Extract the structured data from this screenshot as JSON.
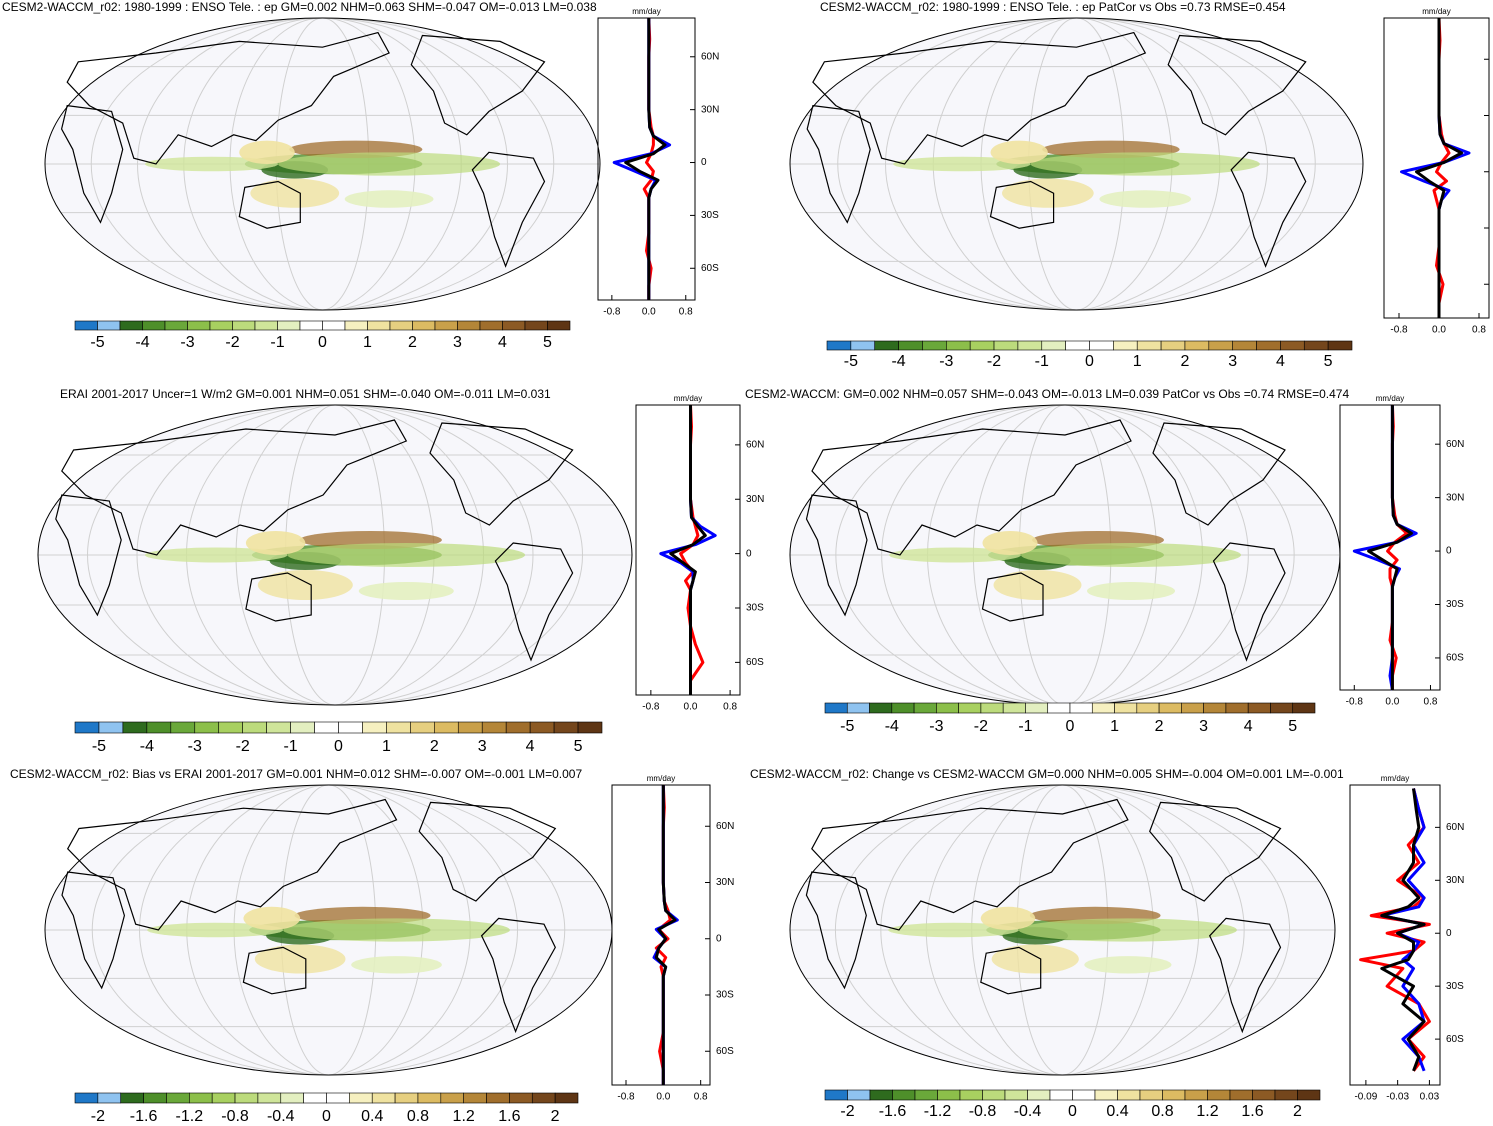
{
  "chart_data": [
    {
      "type": "line",
      "title": "CESM2-WACCM_r02: 1980-1999 : ENSO Tele. : ep GM=0.002 NHM=0.063 SHM=-0.047 OM=-0.013 LM=0.038",
      "x_label": "mm/day",
      "xlim": [
        -1.1,
        1.0
      ],
      "xticks": [
        -0.8,
        {
          "value": 0,
          "label": "0.0"
        },
        0.8
      ],
      "ylim": [
        -78,
        82
      ],
      "yticks": [
        {
          "value": 60,
          "label": "60N"
        },
        {
          "value": 30,
          "label": "30N"
        },
        0,
        {
          "value": -30,
          "label": "30S"
        },
        {
          "value": -60,
          "label": "60S"
        }
      ],
      "ytick_labels": true,
      "lat": [
        82,
        70,
        60,
        50,
        40,
        30,
        20,
        15,
        10,
        5,
        0,
        -5,
        -10,
        -15,
        -20,
        -30,
        -40,
        -50,
        -60,
        -70,
        -78
      ],
      "series": [
        {
          "color": "#ff0000",
          "values": [
            0,
            0.02,
            0,
            0,
            0,
            0,
            0.05,
            0.1,
            0.1,
            0.05,
            -0.05,
            0.1,
            0.05,
            -0.1,
            0,
            0,
            0,
            -0.05,
            0.05,
            0,
            0
          ]
        },
        {
          "color": "#0000ff",
          "values": [
            0,
            0,
            0,
            0,
            0,
            0,
            0.02,
            0.1,
            0.45,
            0.05,
            -0.75,
            -0.3,
            0.15,
            0.05,
            0,
            0,
            0,
            0,
            0,
            0,
            0
          ]
        },
        {
          "color": "#000000",
          "values": [
            0,
            0,
            0,
            0,
            0,
            0,
            0.02,
            0.1,
            0.35,
            0.1,
            -0.5,
            -0.2,
            0.2,
            0.05,
            0,
            0,
            0,
            0,
            0,
            0,
            0
          ]
        }
      ],
      "colorbar": {
        "clim": [
          -5.5,
          5.5
        ],
        "ticks": [
          -5,
          -4,
          -3,
          -2,
          -1,
          0,
          1,
          2,
          3,
          4,
          5
        ],
        "colors": [
          "#1f78c8",
          "#8fc3f0",
          "#2e6b1e",
          "#4e8f2a",
          "#6aa83a",
          "#8cbf4a",
          "#a8d060",
          "#bcdb7c",
          "#cfe59a",
          "#e3efc0",
          "#ffffff",
          "#ffffff",
          "#f6f0c0",
          "#efe2a0",
          "#e6cf80",
          "#dcbb62",
          "#c9a04a",
          "#b48638",
          "#a06e2c",
          "#8c5a24",
          "#74461c",
          "#5e3514"
        ]
      }
    },
    {
      "type": "line",
      "title": "CESM2-WACCM_r02: 1980-1999 : ENSO Tele. : ep PatCor vs Obs =0.73 RMSE=0.454",
      "x_label": "mm/day",
      "xlim": [
        -1.1,
        1.0
      ],
      "xticks": [
        -0.8,
        {
          "value": 0,
          "label": "0.0"
        },
        0.8
      ],
      "ylim": [
        -78,
        82
      ],
      "yticks": [
        60,
        30,
        0,
        -30,
        -60
      ],
      "ytick_labels": false,
      "lat": [
        82,
        70,
        60,
        50,
        40,
        30,
        20,
        15,
        10,
        5,
        0,
        -5,
        -10,
        -15,
        -20,
        -30,
        -40,
        -50,
        -60,
        -70,
        -78
      ],
      "series": [
        {
          "color": "#ff0000",
          "values": [
            0,
            0.02,
            0,
            0,
            0,
            0,
            0.05,
            0.1,
            0.2,
            0.05,
            -0.05,
            0.15,
            -0.1,
            -0.05,
            0,
            0,
            0,
            -0.05,
            0.08,
            0,
            0
          ]
        },
        {
          "color": "#0000ff",
          "values": [
            0,
            0,
            0,
            0,
            0,
            0,
            0.02,
            0.1,
            0.6,
            0.1,
            -0.75,
            -0.3,
            0.2,
            0.05,
            0,
            0,
            0,
            0,
            0,
            0,
            0
          ]
        },
        {
          "color": "#000000",
          "values": [
            0,
            0,
            0,
            0,
            0,
            0,
            0.02,
            0.1,
            0.45,
            0.1,
            -0.45,
            -0.2,
            0.1,
            0.05,
            0,
            0,
            0,
            0,
            0,
            0,
            0
          ]
        }
      ],
      "colorbar": {
        "clim": [
          -5.5,
          5.5
        ],
        "ticks": [
          -5,
          -4,
          -3,
          -2,
          -1,
          0,
          1,
          2,
          3,
          4,
          5
        ],
        "colors": [
          "#1f78c8",
          "#8fc3f0",
          "#2e6b1e",
          "#4e8f2a",
          "#6aa83a",
          "#8cbf4a",
          "#a8d060",
          "#bcdb7c",
          "#cfe59a",
          "#e3efc0",
          "#ffffff",
          "#ffffff",
          "#f6f0c0",
          "#efe2a0",
          "#e6cf80",
          "#dcbb62",
          "#c9a04a",
          "#b48638",
          "#a06e2c",
          "#8c5a24",
          "#74461c",
          "#5e3514"
        ]
      }
    },
    {
      "type": "line",
      "title": "ERAI 2001-2017 Uncer=1 W/m2 GM=0.001 NHM=0.051 SHM=-0.040 OM=-0.011 LM=0.031",
      "x_label": "mm/day",
      "xlim": [
        -1.1,
        1.0
      ],
      "xticks": [
        -0.8,
        {
          "value": 0,
          "label": "0.0"
        },
        0.8
      ],
      "ylim": [
        -78,
        82
      ],
      "yticks": [
        {
          "value": 60,
          "label": "60N"
        },
        {
          "value": 30,
          "label": "30N"
        },
        0,
        {
          "value": -30,
          "label": "30S"
        },
        {
          "value": -60,
          "label": "60S"
        }
      ],
      "ytick_labels": true,
      "lat": [
        82,
        70,
        60,
        50,
        40,
        30,
        20,
        15,
        10,
        5,
        0,
        -5,
        -10,
        -15,
        -20,
        -30,
        -40,
        -50,
        -60,
        -70,
        -78
      ],
      "series": [
        {
          "color": "#ff0000",
          "values": [
            0,
            0.02,
            0,
            0,
            0,
            0,
            0.05,
            0.1,
            0.15,
            0.05,
            -0.2,
            -0.1,
            0.05,
            -0.1,
            0,
            -0.05,
            0,
            0.1,
            0.25,
            0,
            0
          ]
        },
        {
          "color": "#0000ff",
          "values": [
            0,
            0,
            0,
            0,
            0,
            0,
            0.02,
            0.2,
            0.5,
            0.1,
            -0.6,
            -0.2,
            0.05,
            0.05,
            0,
            0,
            0,
            0,
            0,
            0,
            0
          ]
        },
        {
          "color": "#000000",
          "values": [
            0,
            0,
            0,
            0,
            0,
            0,
            0.02,
            0.15,
            0.3,
            0.05,
            -0.4,
            -0.15,
            0.1,
            0.05,
            0,
            0,
            0,
            0,
            0,
            0,
            0
          ]
        }
      ],
      "colorbar": {
        "clim": [
          -5.5,
          5.5
        ],
        "ticks": [
          -5,
          -4,
          -3,
          -2,
          -1,
          0,
          1,
          2,
          3,
          4,
          5
        ],
        "colors": [
          "#1f78c8",
          "#8fc3f0",
          "#2e6b1e",
          "#4e8f2a",
          "#6aa83a",
          "#8cbf4a",
          "#a8d060",
          "#bcdb7c",
          "#cfe59a",
          "#e3efc0",
          "#ffffff",
          "#ffffff",
          "#f6f0c0",
          "#efe2a0",
          "#e6cf80",
          "#dcbb62",
          "#c9a04a",
          "#b48638",
          "#a06e2c",
          "#8c5a24",
          "#74461c",
          "#5e3514"
        ]
      }
    },
    {
      "type": "line",
      "title": "CESM2-WACCM: GM=0.002 NHM=0.057 SHM=-0.043 OM=-0.013 LM=0.039 PatCor vs Obs =0.74 RMSE=0.474",
      "x_label": "mm/day",
      "xlim": [
        -1.1,
        1.0
      ],
      "xticks": [
        -0.8,
        {
          "value": 0,
          "label": "0.0"
        },
        0.8
      ],
      "ylim": [
        -78,
        82
      ],
      "yticks": [
        {
          "value": 60,
          "label": "60N"
        },
        {
          "value": 30,
          "label": "30N"
        },
        0,
        {
          "value": -30,
          "label": "30S"
        },
        {
          "value": -60,
          "label": "60S"
        }
      ],
      "ytick_labels": true,
      "lat": [
        82,
        70,
        60,
        50,
        40,
        30,
        20,
        15,
        10,
        5,
        0,
        -5,
        -10,
        -15,
        -20,
        -30,
        -40,
        -50,
        -60,
        -70,
        -78
      ],
      "series": [
        {
          "color": "#ff0000",
          "values": [
            0,
            0.02,
            0,
            0,
            0,
            0,
            0.05,
            0.1,
            0.3,
            0.05,
            -0.1,
            0.1,
            -0.05,
            -0.05,
            0,
            0,
            0,
            -0.05,
            0.08,
            0,
            0
          ]
        },
        {
          "color": "#0000ff",
          "values": [
            0,
            0,
            0,
            0,
            0,
            0,
            0.02,
            0.1,
            0.5,
            0.1,
            -0.8,
            -0.3,
            0.15,
            0.05,
            0,
            0,
            0,
            0,
            0,
            -0.05,
            0
          ]
        },
        {
          "color": "#000000",
          "values": [
            0,
            0,
            0,
            0,
            0,
            0,
            0.02,
            0.1,
            0.4,
            0.1,
            -0.5,
            -0.2,
            0.1,
            0.05,
            0,
            0,
            0,
            0,
            0,
            0,
            0
          ]
        }
      ],
      "colorbar": {
        "clim": [
          -5.5,
          5.5
        ],
        "ticks": [
          -5,
          -4,
          -3,
          -2,
          -1,
          0,
          1,
          2,
          3,
          4,
          5
        ],
        "colors": [
          "#1f78c8",
          "#8fc3f0",
          "#2e6b1e",
          "#4e8f2a",
          "#6aa83a",
          "#8cbf4a",
          "#a8d060",
          "#bcdb7c",
          "#cfe59a",
          "#e3efc0",
          "#ffffff",
          "#ffffff",
          "#f6f0c0",
          "#efe2a0",
          "#e6cf80",
          "#dcbb62",
          "#c9a04a",
          "#b48638",
          "#a06e2c",
          "#8c5a24",
          "#74461c",
          "#5e3514"
        ]
      }
    },
    {
      "type": "line",
      "title": "CESM2-WACCM_r02: Bias vs ERAI 2001-2017 GM=0.001 NHM=0.012 SHM=-0.007 OM=-0.001 LM=0.007",
      "x_label": "mm/day",
      "xlim": [
        -1.1,
        1.0
      ],
      "xticks": [
        -0.8,
        {
          "value": 0,
          "label": "0.0"
        },
        0.8
      ],
      "ylim": [
        -78,
        82
      ],
      "yticks": [
        {
          "value": 60,
          "label": "60N"
        },
        {
          "value": 30,
          "label": "30N"
        },
        0,
        {
          "value": -30,
          "label": "30S"
        },
        {
          "value": -60,
          "label": "60S"
        }
      ],
      "ytick_labels": true,
      "lat": [
        82,
        70,
        60,
        50,
        40,
        30,
        20,
        15,
        10,
        5,
        0,
        -5,
        -10,
        -15,
        -20,
        -30,
        -40,
        -50,
        -60,
        -70,
        -78
      ],
      "series": [
        {
          "color": "#ff0000",
          "values": [
            0,
            0.02,
            0,
            0,
            0,
            0,
            0.02,
            0.1,
            0.15,
            -0.1,
            0.1,
            -0.15,
            0.05,
            -0.05,
            0,
            0,
            0,
            0,
            -0.08,
            0,
            0
          ]
        },
        {
          "color": "#0000ff",
          "values": [
            0,
            0,
            0,
            0,
            0,
            0,
            0.02,
            0.05,
            0.3,
            -0.15,
            0.05,
            -0.1,
            -0.2,
            0.05,
            0,
            0,
            0,
            0,
            0,
            0,
            0
          ]
        },
        {
          "color": "#000000",
          "values": [
            0,
            0,
            0,
            0,
            0,
            0,
            0.02,
            0.05,
            0.25,
            -0.1,
            0.05,
            -0.1,
            -0.15,
            0.05,
            0,
            0,
            0,
            0,
            0,
            0,
            0
          ]
        }
      ],
      "colorbar": {
        "clim": [
          -2.2,
          2.2
        ],
        "ticks": [
          -2,
          -1.6,
          -1.2,
          -0.8,
          -0.4,
          0,
          0.4,
          0.8,
          1.2,
          1.6,
          2
        ],
        "colors": [
          "#1f78c8",
          "#8fc3f0",
          "#2e6b1e",
          "#4e8f2a",
          "#6aa83a",
          "#8cbf4a",
          "#a8d060",
          "#bcdb7c",
          "#cfe59a",
          "#e3efc0",
          "#ffffff",
          "#ffffff",
          "#f6f0c0",
          "#efe2a0",
          "#e6cf80",
          "#dcbb62",
          "#c9a04a",
          "#b48638",
          "#a06e2c",
          "#8c5a24",
          "#74461c",
          "#5e3514"
        ]
      }
    },
    {
      "type": "line",
      "title": "CESM2-WACCM_r02: Change vs CESM2-WACCM GM=0.000 NHM=0.005 SHM=-0.004 OM=0.001 LM=-0.001",
      "x_label": "mm/day",
      "xlim": [
        -0.12,
        0.05
      ],
      "xticks": [
        -0.09,
        -0.03,
        0.03
      ],
      "ylim": [
        -86,
        84
      ],
      "yticks": [
        {
          "value": 60,
          "label": "60N"
        },
        {
          "value": 30,
          "label": "30N"
        },
        0,
        {
          "value": -30,
          "label": "30S"
        },
        {
          "value": -60,
          "label": "60S"
        }
      ],
      "ytick_labels": true,
      "lat": [
        82,
        70,
        60,
        50,
        40,
        30,
        20,
        15,
        10,
        5,
        0,
        -5,
        -10,
        -15,
        -20,
        -30,
        -40,
        -50,
        -60,
        -70,
        -78
      ],
      "series": [
        {
          "color": "#ff0000",
          "values": [
            0,
            0.01,
            0.02,
            -0.01,
            0.01,
            -0.03,
            0.02,
            0.0,
            -0.08,
            0.03,
            -0.05,
            0.02,
            0.0,
            -0.1,
            -0.02,
            -0.05,
            0.01,
            0.03,
            -0.01,
            0.02,
            0
          ]
        },
        {
          "color": "#0000ff",
          "values": [
            0,
            0.01,
            0.02,
            0.0,
            0.02,
            -0.01,
            0.02,
            0.01,
            -0.06,
            0.02,
            -0.03,
            0.01,
            0.0,
            -0.02,
            0.0,
            -0.02,
            0.01,
            0.02,
            -0.02,
            0.01,
            0.02
          ]
        },
        {
          "color": "#000000",
          "values": [
            0,
            0.005,
            0.01,
            0.0,
            0.0,
            -0.02,
            0.01,
            -0.01,
            -0.06,
            0.02,
            -0.03,
            0.0,
            0.0,
            -0.01,
            -0.06,
            0.0,
            -0.02,
            0.02,
            -0.01,
            0.01,
            0
          ]
        }
      ],
      "colorbar": {
        "clim": [
          -2.2,
          2.2
        ],
        "ticks": [
          -2,
          -1.6,
          -1.2,
          -0.8,
          -0.4,
          0,
          0.4,
          0.8,
          1.2,
          1.6,
          2
        ],
        "colors": [
          "#1f78c8",
          "#8fc3f0",
          "#2e6b1e",
          "#4e8f2a",
          "#6aa83a",
          "#8cbf4a",
          "#a8d060",
          "#bcdb7c",
          "#cfe59a",
          "#e3efc0",
          "#ffffff",
          "#ffffff",
          "#f6f0c0",
          "#efe2a0",
          "#e6cf80",
          "#dcbb62",
          "#c9a04a",
          "#b48638",
          "#a06e2c",
          "#8c5a24",
          "#74461c",
          "#5e3514"
        ]
      }
    }
  ]
}
